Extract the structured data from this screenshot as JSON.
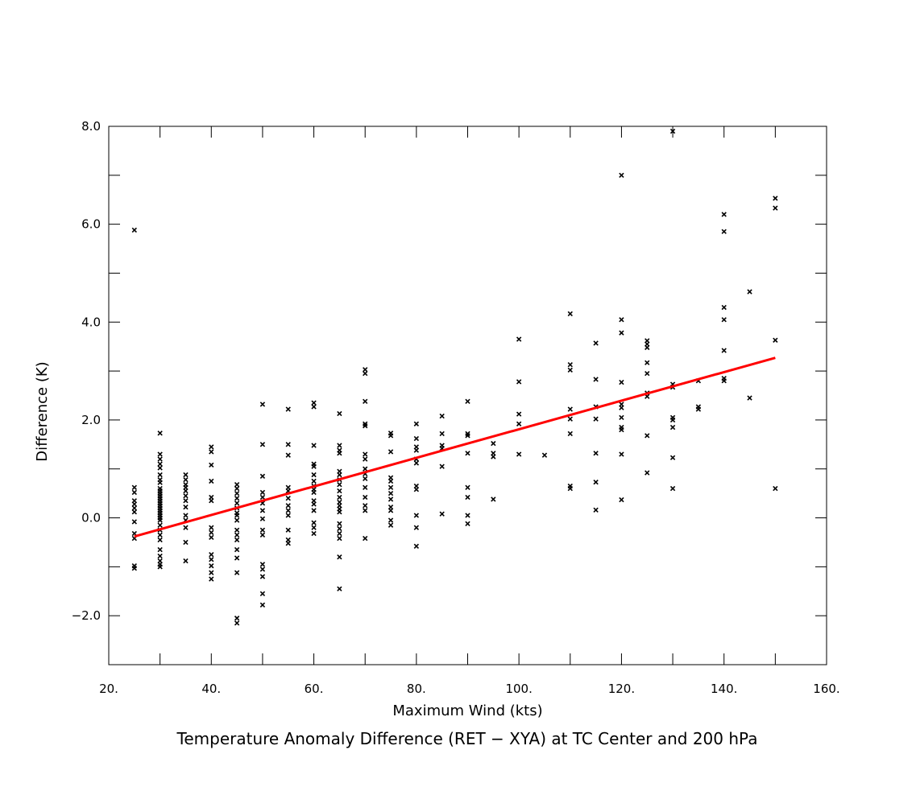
{
  "chart_data": {
    "type": "scatter",
    "title": "Temperature Anomaly Difference (RET − XYA) at TC Center and 200 hPa",
    "xlabel": "Maximum Wind (kts)",
    "ylabel": "Difference (K)",
    "xlim": [
      20,
      160
    ],
    "ylim": [
      -3,
      8
    ],
    "xticks": [
      20,
      40,
      60,
      80,
      100,
      120,
      140,
      160
    ],
    "xtick_labels": [
      "20.",
      "40.",
      "60.",
      "80.",
      "100.",
      "120.",
      "140.",
      "160."
    ],
    "yticks": [
      -2,
      0,
      2,
      4,
      6,
      8
    ],
    "ytick_labels": [
      "−2.0",
      "0.0",
      "2.0",
      "4.0",
      "6.0",
      "8.0"
    ],
    "minor_xticks": [
      30,
      50,
      70,
      90,
      110,
      130,
      150
    ],
    "minor_yticks": [
      -3,
      -1,
      1,
      3,
      5,
      7
    ],
    "marker": "x",
    "marker_color": "#000000",
    "fit_line": {
      "x": [
        25,
        150
      ],
      "y": [
        -0.38,
        3.27
      ],
      "color": "#ff0000"
    },
    "series": [
      {
        "points": [
          [
            25,
            5.88
          ],
          [
            25,
            0.62
          ],
          [
            25,
            0.52
          ],
          [
            25,
            0.35
          ],
          [
            25,
            0.28
          ],
          [
            25,
            0.2
          ],
          [
            25,
            0.12
          ],
          [
            25,
            -0.08
          ],
          [
            25,
            -0.32
          ],
          [
            25,
            -0.42
          ],
          [
            25,
            -0.98
          ],
          [
            25,
            -1.03
          ],
          [
            30,
            1.73
          ],
          [
            30,
            1.3
          ],
          [
            30,
            1.2
          ],
          [
            30,
            1.1
          ],
          [
            30,
            1.02
          ],
          [
            30,
            0.88
          ],
          [
            30,
            0.78
          ],
          [
            30,
            0.72
          ],
          [
            30,
            0.6
          ],
          [
            30,
            0.55
          ],
          [
            30,
            0.5
          ],
          [
            30,
            0.45
          ],
          [
            30,
            0.4
          ],
          [
            30,
            0.35
          ],
          [
            30,
            0.3
          ],
          [
            30,
            0.25
          ],
          [
            30,
            0.2
          ],
          [
            30,
            0.15
          ],
          [
            30,
            0.1
          ],
          [
            30,
            0.05
          ],
          [
            30,
            0.0
          ],
          [
            30,
            -0.05
          ],
          [
            30,
            -0.15
          ],
          [
            30,
            -0.25
          ],
          [
            30,
            -0.35
          ],
          [
            30,
            -0.45
          ],
          [
            30,
            -0.65
          ],
          [
            30,
            -0.78
          ],
          [
            30,
            -0.88
          ],
          [
            30,
            -0.95
          ],
          [
            30,
            -1.0
          ],
          [
            35,
            0.88
          ],
          [
            35,
            0.78
          ],
          [
            35,
            0.68
          ],
          [
            35,
            0.62
          ],
          [
            35,
            0.55
          ],
          [
            35,
            0.45
          ],
          [
            35,
            0.35
          ],
          [
            35,
            0.22
          ],
          [
            35,
            0.05
          ],
          [
            35,
            -0.05
          ],
          [
            35,
            -0.2
          ],
          [
            35,
            -0.5
          ],
          [
            35,
            -0.88
          ],
          [
            40,
            1.45
          ],
          [
            40,
            1.35
          ],
          [
            40,
            1.08
          ],
          [
            40,
            0.75
          ],
          [
            40,
            0.42
          ],
          [
            40,
            0.35
          ],
          [
            40,
            -0.2
          ],
          [
            40,
            -0.3
          ],
          [
            40,
            -0.4
          ],
          [
            40,
            -0.75
          ],
          [
            40,
            -0.85
          ],
          [
            40,
            -0.98
          ],
          [
            40,
            -1.12
          ],
          [
            40,
            -1.25
          ],
          [
            45,
            0.68
          ],
          [
            45,
            0.6
          ],
          [
            45,
            0.5
          ],
          [
            45,
            0.4
          ],
          [
            45,
            0.3
          ],
          [
            45,
            0.2
          ],
          [
            45,
            0.1
          ],
          [
            45,
            0.05
          ],
          [
            45,
            -0.05
          ],
          [
            45,
            -0.25
          ],
          [
            45,
            -0.35
          ],
          [
            45,
            -0.45
          ],
          [
            45,
            -0.65
          ],
          [
            45,
            -0.82
          ],
          [
            45,
            -1.12
          ],
          [
            45,
            -2.05
          ],
          [
            45,
            -2.15
          ],
          [
            50,
            2.32
          ],
          [
            50,
            1.5
          ],
          [
            50,
            0.85
          ],
          [
            50,
            0.52
          ],
          [
            50,
            0.42
          ],
          [
            50,
            0.3
          ],
          [
            50,
            0.15
          ],
          [
            50,
            -0.02
          ],
          [
            50,
            -0.25
          ],
          [
            50,
            -0.35
          ],
          [
            50,
            -0.95
          ],
          [
            50,
            -1.05
          ],
          [
            50,
            -1.2
          ],
          [
            50,
            -1.55
          ],
          [
            50,
            -1.78
          ],
          [
            55,
            2.22
          ],
          [
            55,
            1.5
          ],
          [
            55,
            1.28
          ],
          [
            55,
            0.62
          ],
          [
            55,
            0.55
          ],
          [
            55,
            0.4
          ],
          [
            55,
            0.25
          ],
          [
            55,
            0.15
          ],
          [
            55,
            0.05
          ],
          [
            55,
            -0.25
          ],
          [
            55,
            -0.45
          ],
          [
            55,
            -0.52
          ],
          [
            60,
            2.35
          ],
          [
            60,
            2.27
          ],
          [
            60,
            1.48
          ],
          [
            60,
            1.1
          ],
          [
            60,
            1.05
          ],
          [
            60,
            0.88
          ],
          [
            60,
            0.75
          ],
          [
            60,
            0.65
          ],
          [
            60,
            0.58
          ],
          [
            60,
            0.52
          ],
          [
            60,
            0.35
          ],
          [
            60,
            0.28
          ],
          [
            60,
            0.15
          ],
          [
            60,
            -0.1
          ],
          [
            60,
            -0.2
          ],
          [
            60,
            -0.32
          ],
          [
            65,
            2.13
          ],
          [
            65,
            1.48
          ],
          [
            65,
            1.38
          ],
          [
            65,
            1.32
          ],
          [
            65,
            0.95
          ],
          [
            65,
            0.88
          ],
          [
            65,
            0.78
          ],
          [
            65,
            0.68
          ],
          [
            65,
            0.55
          ],
          [
            65,
            0.42
          ],
          [
            65,
            0.32
          ],
          [
            65,
            0.25
          ],
          [
            65,
            0.18
          ],
          [
            65,
            0.12
          ],
          [
            65,
            -0.12
          ],
          [
            65,
            -0.22
          ],
          [
            65,
            -0.32
          ],
          [
            65,
            -0.42
          ],
          [
            65,
            -0.8
          ],
          [
            65,
            -1.45
          ],
          [
            70,
            3.03
          ],
          [
            70,
            2.95
          ],
          [
            70,
            2.38
          ],
          [
            70,
            1.92
          ],
          [
            70,
            1.88
          ],
          [
            70,
            1.3
          ],
          [
            70,
            1.2
          ],
          [
            70,
            1.0
          ],
          [
            70,
            0.9
          ],
          [
            70,
            0.8
          ],
          [
            70,
            0.62
          ],
          [
            70,
            0.42
          ],
          [
            70,
            0.25
          ],
          [
            70,
            0.15
          ],
          [
            70,
            -0.42
          ],
          [
            75,
            1.73
          ],
          [
            75,
            1.68
          ],
          [
            75,
            1.35
          ],
          [
            75,
            0.82
          ],
          [
            75,
            0.75
          ],
          [
            75,
            0.62
          ],
          [
            75,
            0.5
          ],
          [
            75,
            0.38
          ],
          [
            75,
            0.22
          ],
          [
            75,
            0.15
          ],
          [
            75,
            -0.05
          ],
          [
            75,
            -0.15
          ],
          [
            80,
            1.92
          ],
          [
            80,
            1.62
          ],
          [
            80,
            1.45
          ],
          [
            80,
            1.38
          ],
          [
            80,
            1.2
          ],
          [
            80,
            1.12
          ],
          [
            80,
            0.65
          ],
          [
            80,
            0.58
          ],
          [
            80,
            0.05
          ],
          [
            80,
            -0.2
          ],
          [
            80,
            -0.58
          ],
          [
            85,
            2.08
          ],
          [
            85,
            1.72
          ],
          [
            85,
            1.48
          ],
          [
            85,
            1.42
          ],
          [
            85,
            1.05
          ],
          [
            85,
            0.08
          ],
          [
            90,
            2.38
          ],
          [
            90,
            1.72
          ],
          [
            90,
            1.68
          ],
          [
            90,
            1.32
          ],
          [
            90,
            0.62
          ],
          [
            90,
            0.42
          ],
          [
            90,
            0.05
          ],
          [
            90,
            -0.12
          ],
          [
            95,
            1.52
          ],
          [
            95,
            1.32
          ],
          [
            95,
            1.25
          ],
          [
            95,
            0.38
          ],
          [
            100,
            3.65
          ],
          [
            100,
            2.78
          ],
          [
            100,
            2.12
          ],
          [
            100,
            1.92
          ],
          [
            100,
            1.3
          ],
          [
            105,
            1.28
          ],
          [
            110,
            4.17
          ],
          [
            110,
            3.13
          ],
          [
            110,
            3.02
          ],
          [
            110,
            2.22
          ],
          [
            110,
            2.02
          ],
          [
            110,
            1.72
          ],
          [
            110,
            0.65
          ],
          [
            110,
            0.6
          ],
          [
            115,
            3.57
          ],
          [
            115,
            2.83
          ],
          [
            115,
            2.27
          ],
          [
            115,
            2.02
          ],
          [
            115,
            1.32
          ],
          [
            115,
            0.73
          ],
          [
            115,
            0.16
          ],
          [
            120,
            7.0
          ],
          [
            120,
            4.05
          ],
          [
            120,
            3.78
          ],
          [
            120,
            2.77
          ],
          [
            120,
            2.32
          ],
          [
            120,
            2.25
          ],
          [
            120,
            2.05
          ],
          [
            120,
            1.85
          ],
          [
            120,
            1.8
          ],
          [
            120,
            1.3
          ],
          [
            120,
            0.37
          ],
          [
            125,
            3.62
          ],
          [
            125,
            3.55
          ],
          [
            125,
            3.48
          ],
          [
            125,
            3.17
          ],
          [
            125,
            2.95
          ],
          [
            125,
            2.55
          ],
          [
            125,
            2.48
          ],
          [
            125,
            1.68
          ],
          [
            125,
            0.92
          ],
          [
            130,
            7.9
          ],
          [
            130,
            2.73
          ],
          [
            130,
            2.67
          ],
          [
            130,
            2.05
          ],
          [
            130,
            2.0
          ],
          [
            130,
            1.85
          ],
          [
            130,
            1.23
          ],
          [
            130,
            0.6
          ],
          [
            135,
            2.8
          ],
          [
            135,
            2.27
          ],
          [
            135,
            2.22
          ],
          [
            140,
            6.2
          ],
          [
            140,
            5.85
          ],
          [
            140,
            4.3
          ],
          [
            140,
            4.05
          ],
          [
            140,
            3.42
          ],
          [
            140,
            2.85
          ],
          [
            140,
            2.8
          ],
          [
            145,
            4.62
          ],
          [
            145,
            2.45
          ],
          [
            150,
            6.53
          ],
          [
            150,
            6.33
          ],
          [
            150,
            3.63
          ],
          [
            150,
            0.6
          ]
        ]
      }
    ]
  }
}
